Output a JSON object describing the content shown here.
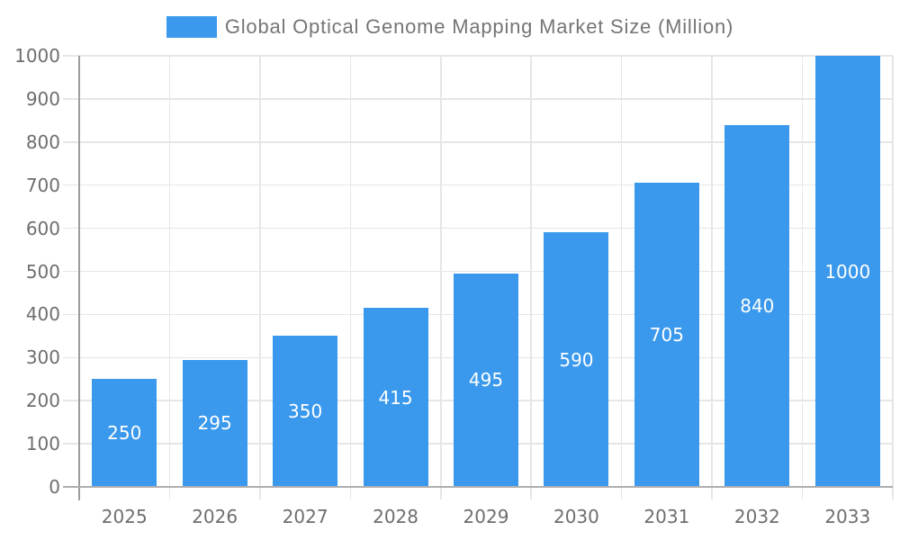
{
  "legend": {
    "label": "Global Optical Genome Mapping Market Size (Million)"
  },
  "chart_data": {
    "type": "bar",
    "title": "Global Optical Genome Mapping Market Size (Million)",
    "series_name": "Global Optical Genome Mapping Market Size (Million)",
    "categories": [
      "2025",
      "2026",
      "2027",
      "2028",
      "2029",
      "2030",
      "2031",
      "2032",
      "2033"
    ],
    "values": [
      250,
      295,
      350,
      415,
      495,
      590,
      705,
      840,
      1000
    ],
    "bar_value_labels": [
      "250",
      "295",
      "350",
      "415",
      "495",
      "590",
      "705",
      "840",
      "1000"
    ],
    "y_tick_labels": [
      "0",
      "100",
      "200",
      "300",
      "400",
      "500",
      "600",
      "700",
      "800",
      "900",
      "1000"
    ],
    "xlabel": "",
    "ylabel": "",
    "ylim": [
      0,
      1000
    ],
    "ytick_step": 100,
    "grid": true,
    "legend_position": "top-center",
    "colors": {
      "bar": "#3A99EC",
      "grid": "#E6E6E6",
      "y_axis_line": "#9C9C9C",
      "x_axis_line": "#AFAFAF",
      "tick_label": "#6E6E6E",
      "legend_text": "#757575",
      "bar_label": "#FFFFFF",
      "background": "#FFFFFF"
    }
  }
}
